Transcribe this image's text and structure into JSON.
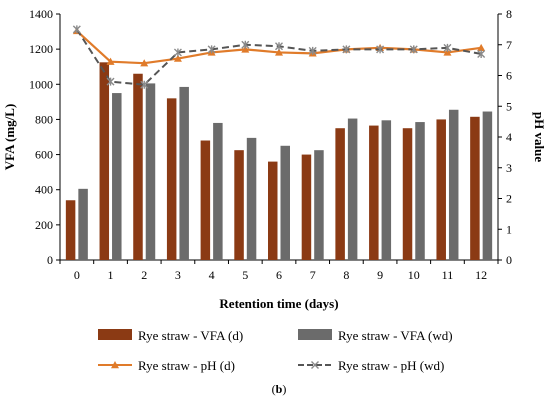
{
  "chart_data": {
    "type": "bar",
    "xlabel": "Retention time (days)",
    "ylabel": "VFA (mg/L)",
    "y2label": "pH value",
    "ylim": [
      0,
      1400
    ],
    "y2lim": [
      0,
      8
    ],
    "grid": false,
    "legend_placement": "bottom",
    "caption_prefix": "(",
    "caption_letter": "b",
    "caption_suffix": ")",
    "categories": [
      "0",
      "1",
      "2",
      "3",
      "4",
      "5",
      "6",
      "7",
      "8",
      "9",
      "10",
      "11",
      "12"
    ],
    "yticks": [
      "0",
      "200",
      "400",
      "600",
      "800",
      "1000",
      "1200",
      "1400"
    ],
    "y2ticks": [
      "0",
      "1",
      "2",
      "3",
      "4",
      "5",
      "6",
      "7",
      "8"
    ],
    "series": [
      {
        "name": "Rye straw - VFA (d)",
        "kind": "bar",
        "axis": "left",
        "color": "#8b3a14",
        "values": [
          340,
          1125,
          1060,
          920,
          680,
          625,
          560,
          600,
          750,
          765,
          750,
          800,
          815
        ]
      },
      {
        "name": "Rye straw - VFA (wd)",
        "kind": "bar",
        "axis": "left",
        "color": "#6b6b6b",
        "values": [
          405,
          950,
          1005,
          985,
          780,
          695,
          650,
          625,
          805,
          795,
          785,
          855,
          845
        ]
      },
      {
        "name": "Rye straw - pH (d)",
        "kind": "line",
        "axis": "right",
        "color": "#e07b2a",
        "marker": "triangle",
        "values": [
          7.45,
          6.45,
          6.4,
          6.55,
          6.75,
          6.85,
          6.75,
          6.72,
          6.85,
          6.9,
          6.85,
          6.75,
          6.9
        ]
      },
      {
        "name": "Rye straw - pH (wd)",
        "kind": "line",
        "axis": "right",
        "color": "#555555",
        "marker": "x",
        "dashed": true,
        "values": [
          7.5,
          5.8,
          5.7,
          6.75,
          6.85,
          7.0,
          6.95,
          6.8,
          6.85,
          6.85,
          6.85,
          6.9,
          6.7
        ]
      }
    ]
  }
}
